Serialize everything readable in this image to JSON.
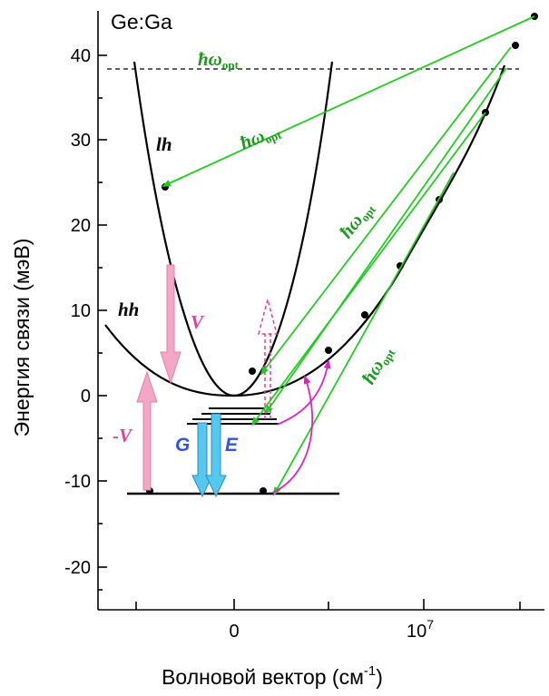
{
  "title": "Ge:Ga",
  "y_axis": {
    "label": "Энергия связи (мэВ)",
    "ticks": [
      "40",
      "30",
      "20",
      "10",
      "0",
      "-10",
      "-20"
    ]
  },
  "x_axis": {
    "label_main": "Волновой вектор (см",
    "label_sup": "-1",
    "label_close": ")",
    "tick_zero": "0",
    "tick_base": "10",
    "tick_exp": "7"
  },
  "labels": {
    "lh": "lh",
    "hh": "hh",
    "V": "V",
    "minus_V": "-V",
    "G": "G",
    "E": "E",
    "hw_symbol": "ħω",
    "hw_sub": "opt"
  },
  "colors": {
    "curve": "#000000",
    "optical": "#22cc22",
    "hw_label": "#1a9a1a",
    "pink": "#f4a6c6",
    "magenta": "#e020c8",
    "blue": "#55c8f0",
    "G_label": "#3355dd",
    "V_label": "#e0409a"
  }
}
